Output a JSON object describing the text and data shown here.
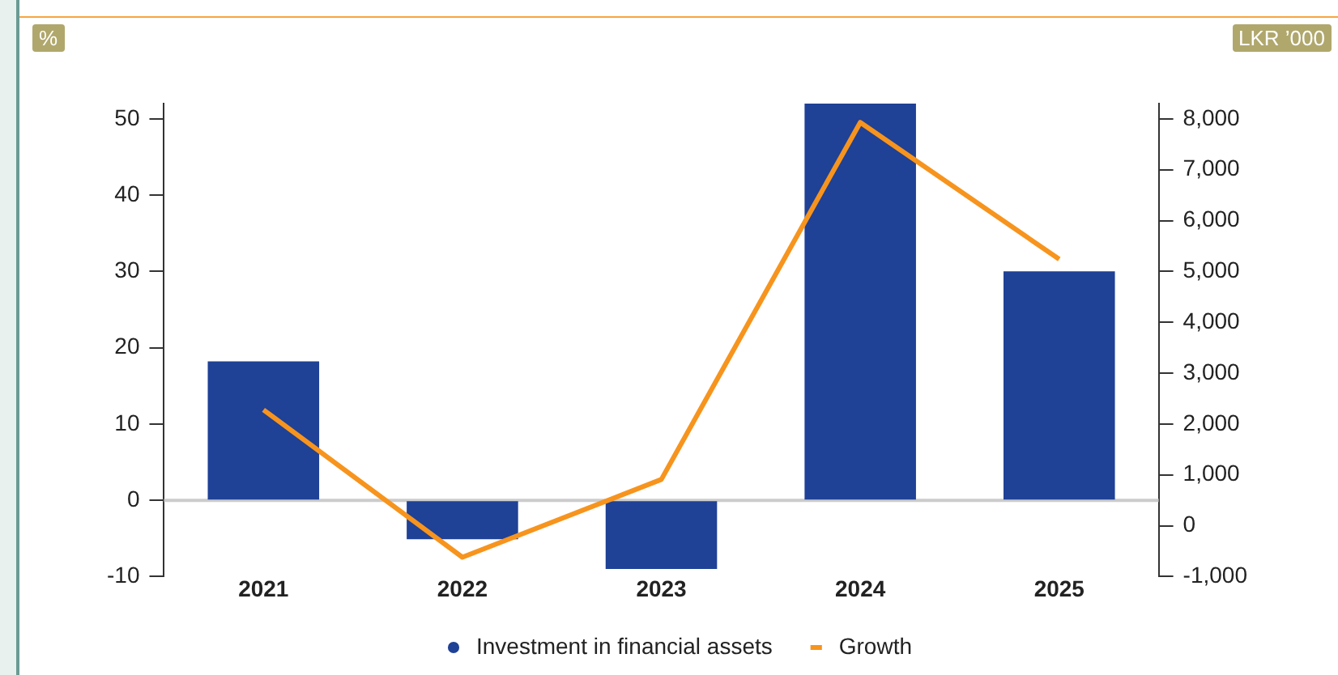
{
  "chart_data": {
    "type": "bar",
    "ylabel": "%",
    "y2label": "LKR ’000",
    "categories": [
      "2021",
      "2022",
      "2023",
      "2024",
      "2025"
    ],
    "series": [
      {
        "name": "Investment in financial assets",
        "color": "#1f4196",
        "values": [
          18.2,
          -5.1,
          -9.0,
          52.0,
          30.0
        ]
      },
      {
        "name": "Growth",
        "type": "line",
        "axis": "y2",
        "color": "#f7941d",
        "values": [
          2280,
          -620,
          910,
          7930,
          5240
        ]
      }
    ],
    "ylim": [
      -10,
      52
    ],
    "yticks": [
      -10,
      0,
      10,
      20,
      30,
      40,
      50
    ],
    "y2lim": [
      -1000,
      8300
    ],
    "y2ticks": [
      {
        "value": -1000,
        "label": "-1,000"
      },
      0,
      {
        "value": 1000,
        "label": "1,000"
      },
      {
        "value": 2000,
        "label": "2,000"
      },
      {
        "value": 3000,
        "label": "3,000"
      },
      {
        "value": 4000,
        "label": "4,000"
      },
      {
        "value": 5000,
        "label": "5,000"
      },
      {
        "value": 6000,
        "label": "6,000"
      },
      {
        "value": 7000,
        "label": "7,000"
      },
      {
        "value": 8000,
        "label": "8,000"
      }
    ],
    "ref_lines": [
      {
        "axis": "y",
        "value": 0,
        "color": "#cccccc"
      }
    ],
    "grid": false,
    "legend": "bottom",
    "marker": "none",
    "line_style": "solid"
  }
}
